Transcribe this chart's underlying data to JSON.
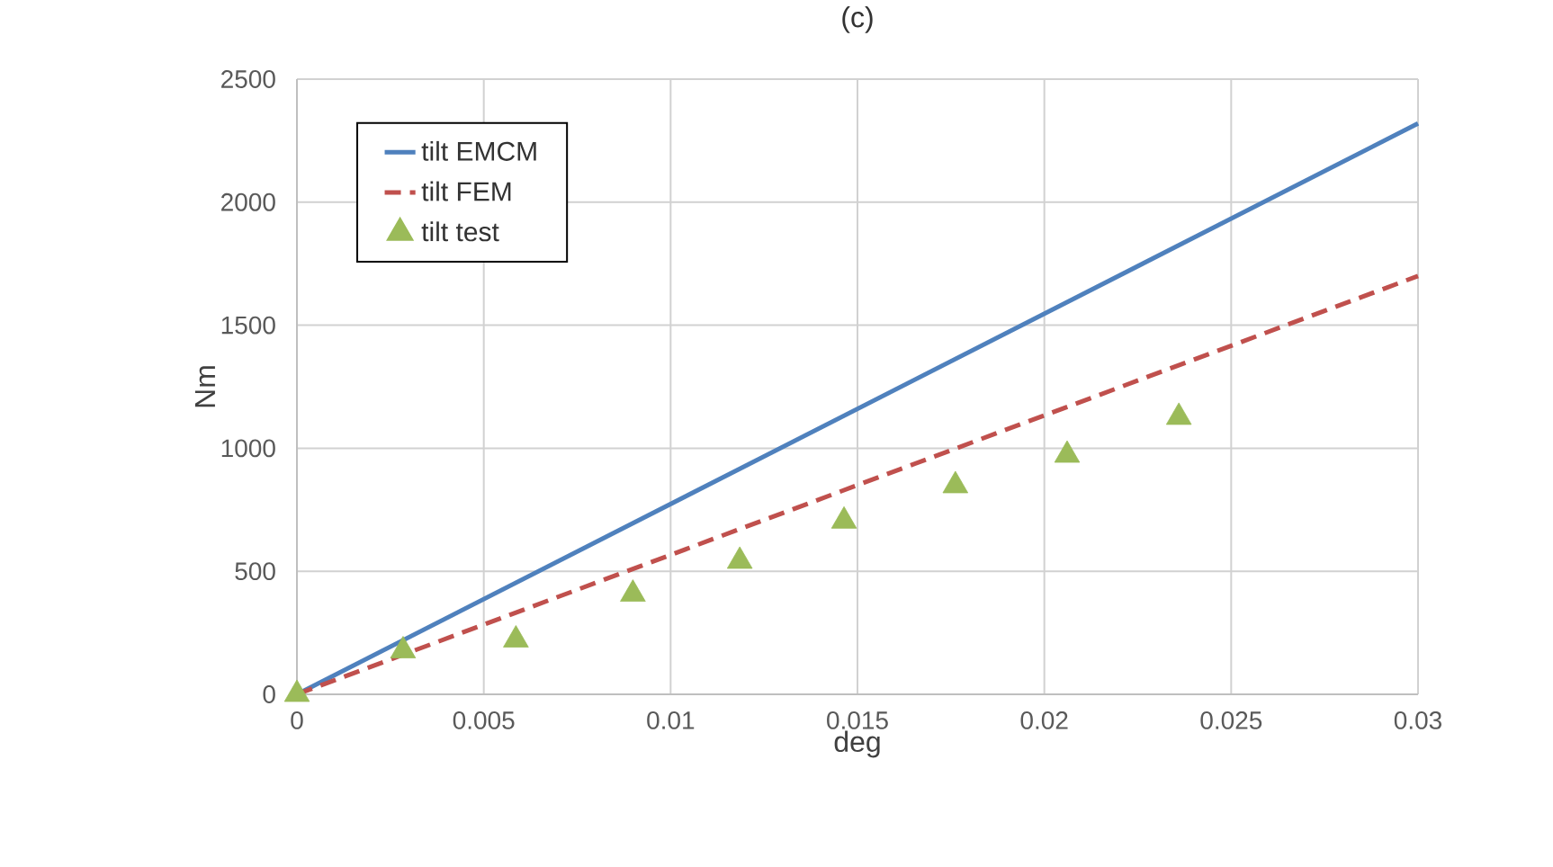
{
  "chart_data": {
    "type": "line",
    "title": "(c)",
    "xlabel": "deg",
    "ylabel": "Nm",
    "xlim": [
      0,
      0.03
    ],
    "ylim": [
      0,
      2500
    ],
    "xticks": [
      0,
      0.005,
      0.01,
      0.015,
      0.02,
      0.025,
      0.03
    ],
    "yticks": [
      0,
      500,
      1000,
      1500,
      2000,
      2500
    ],
    "grid": true,
    "legend": "top left",
    "series": [
      {
        "name": "tilt EMCM",
        "color": "#4f81bd",
        "line_style": "solid",
        "marker": "none",
        "x": [
          0,
          0.03
        ],
        "values": [
          0,
          2320
        ]
      },
      {
        "name": "tilt FEM",
        "color": "#c0504d",
        "line_style": "dashed",
        "marker": "none",
        "x": [
          0,
          0.03
        ],
        "values": [
          0,
          1700
        ]
      },
      {
        "name": "tilt test",
        "type": "scatter",
        "color": "#9bbb59",
        "marker": "triangle",
        "x": [
          0,
          0.00284,
          0.00586,
          0.00899,
          0.01185,
          0.01464,
          0.01762,
          0.02061,
          0.0236
        ],
        "values": [
          0,
          177,
          221,
          407,
          541,
          704,
          848,
          972,
          1126
        ]
      }
    ]
  }
}
